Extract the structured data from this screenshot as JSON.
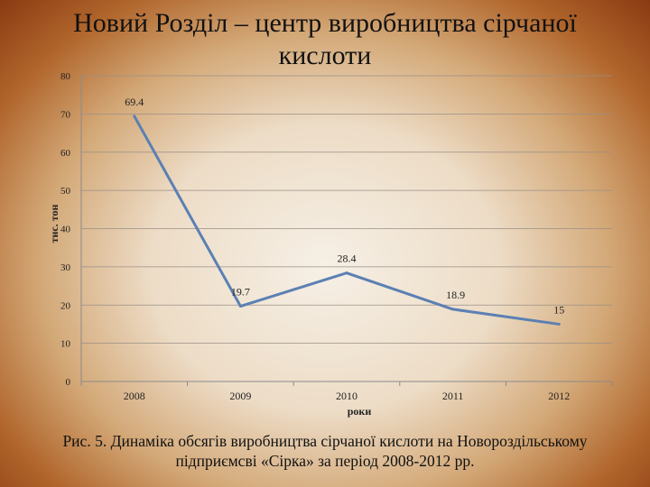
{
  "chart_data": {
    "type": "line",
    "title": "Новий Розділ – центр виробництва сірчаної кислоти",
    "xlabel": "роки",
    "ylabel": "тис. тон",
    "categories": [
      "2008",
      "2009",
      "2010",
      "2011",
      "2012"
    ],
    "series": [
      {
        "values": [
          69.4,
          19.7,
          28.4,
          18.9,
          15
        ],
        "labels": [
          "69.4",
          "19.7",
          "28.4",
          "18.9",
          "15"
        ]
      }
    ],
    "ylim": [
      0,
      80
    ],
    "yticks": [
      "0",
      "10",
      "20",
      "30",
      "40",
      "50",
      "60",
      "70",
      "80"
    ],
    "grid": true,
    "line_color": "#5b80b3"
  },
  "caption": "Рис. 5. Динаміка обсягів виробництва сірчаної кислоти на Новороздільському підприємсві «Сірка» за період 2008-2012 рр."
}
